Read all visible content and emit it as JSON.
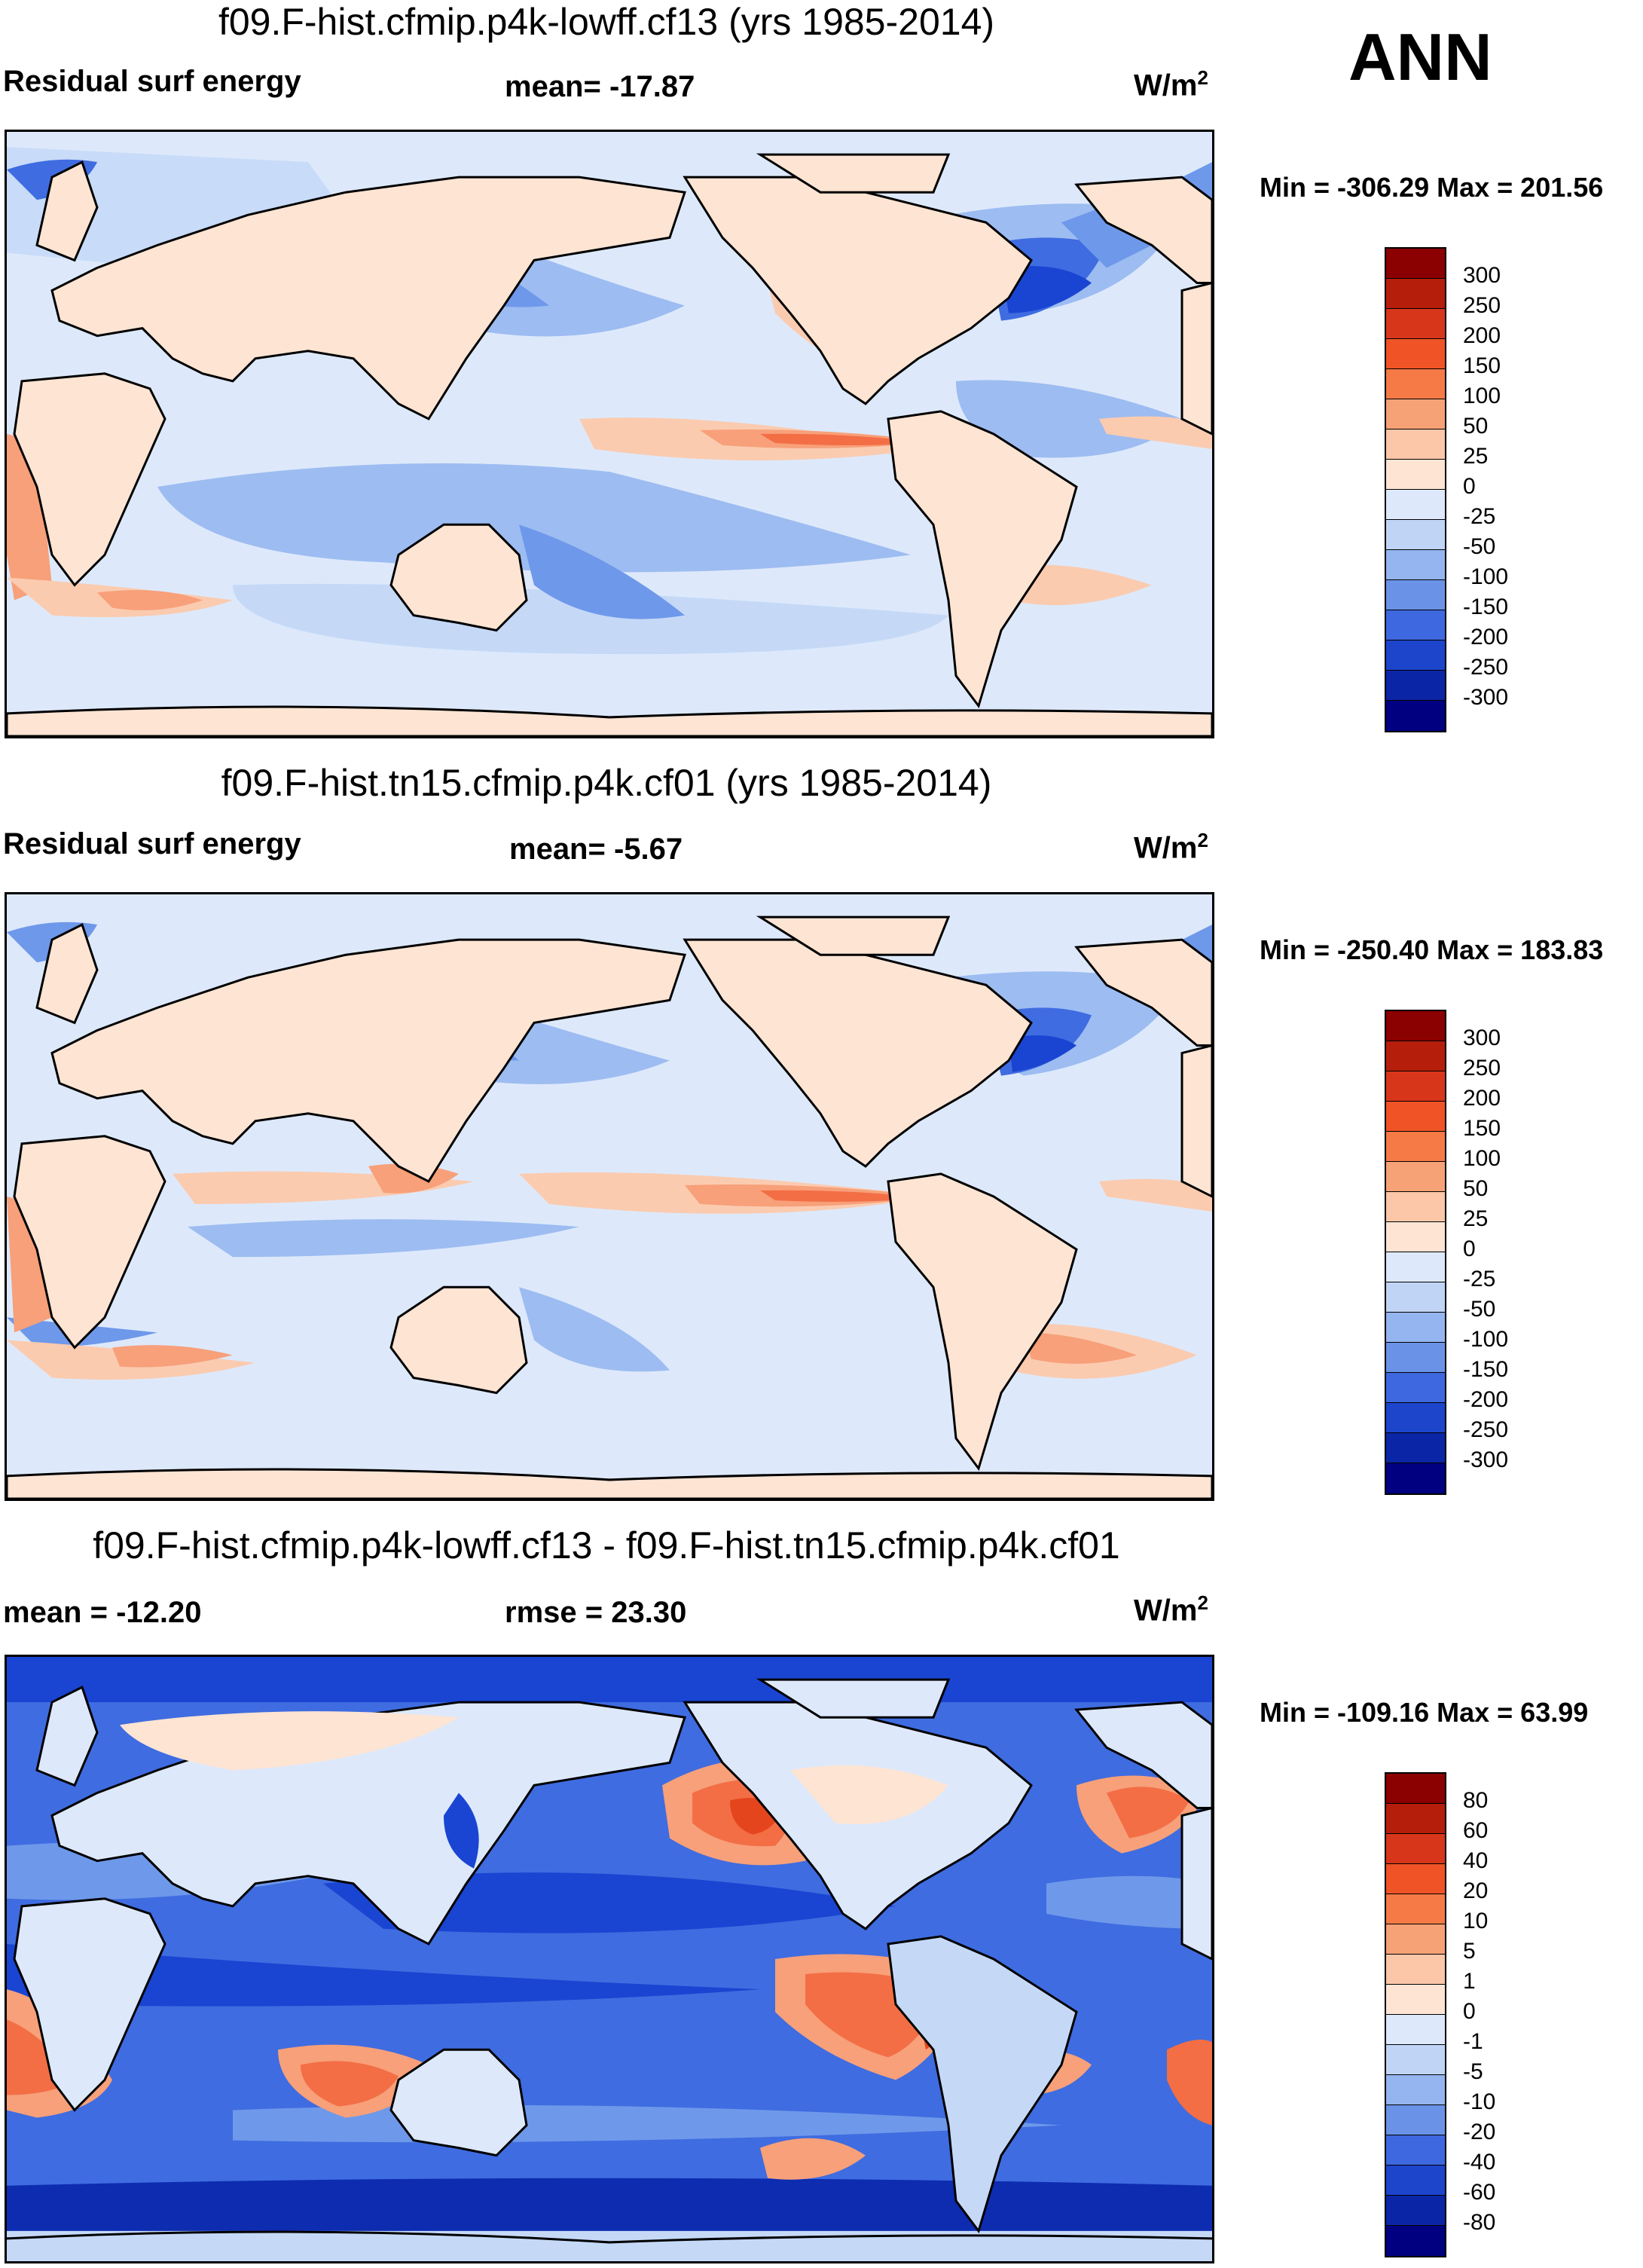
{
  "season": "ANN",
  "colors": {
    "ocean_light": "#dde9fb",
    "land": "#fde4d3",
    "warm1": "#fbcbb0",
    "warm2": "#f7a07a",
    "warm3": "#f36e45",
    "warm4": "#e4451c",
    "cool1": "#c5d9f7",
    "cool2": "#9dbcf1",
    "cool3": "#6e98ea",
    "cool4": "#3f6ce0",
    "cool5": "#1a45d2",
    "cool6": "#0d2cb0"
  },
  "chart_data": [
    {
      "type": "heatmap",
      "title": "f09.F-hist.cfmip.p4k-lowff.cf13 (yrs 1985-2014)",
      "left_label": "Residual surf energy",
      "center_label": "mean= -17.87",
      "units": "W/m",
      "units_sup": "2",
      "minmax": "Min = -306.29 Max = 201.56",
      "statistics": {
        "mean": -17.87,
        "min": -306.29,
        "max": 201.56
      },
      "colorbar": {
        "levels": [
          "300",
          "250",
          "200",
          "150",
          "100",
          "50",
          "25",
          "0",
          "-25",
          "-50",
          "-100",
          "-150",
          "-200",
          "-250",
          "-300"
        ],
        "colors": [
          "#8b0000",
          "#b51e0a",
          "#d8361a",
          "#f05325",
          "#f57a45",
          "#f7a177",
          "#fbc7a8",
          "#fde4d3",
          "#dde9fb",
          "#c0d5f6",
          "#94b5ef",
          "#6a93e8",
          "#3d68df",
          "#1c45cc",
          "#0a26a6",
          "#000080"
        ]
      },
      "xlabel": "",
      "ylabel": ""
    },
    {
      "type": "heatmap",
      "title": "f09.F-hist.tn15.cfmip.p4k.cf01 (yrs 1985-2014)",
      "left_label": "Residual surf energy",
      "center_label": "mean=  -5.67",
      "units": "W/m",
      "units_sup": "2",
      "minmax": "Min = -250.40 Max = 183.83",
      "statistics": {
        "mean": -5.67,
        "min": -250.4,
        "max": 183.83
      },
      "colorbar": {
        "levels": [
          "300",
          "250",
          "200",
          "150",
          "100",
          "50",
          "25",
          "0",
          "-25",
          "-50",
          "-100",
          "-150",
          "-200",
          "-250",
          "-300"
        ],
        "colors": [
          "#8b0000",
          "#b51e0a",
          "#d8361a",
          "#f05325",
          "#f57a45",
          "#f7a177",
          "#fbc7a8",
          "#fde4d3",
          "#dde9fb",
          "#c0d5f6",
          "#94b5ef",
          "#6a93e8",
          "#3d68df",
          "#1c45cc",
          "#0a26a6",
          "#000080"
        ]
      },
      "xlabel": "",
      "ylabel": ""
    },
    {
      "type": "heatmap",
      "title": "f09.F-hist.cfmip.p4k-lowff.cf13 - f09.F-hist.tn15.cfmip.p4k.cf01",
      "left_label": "mean = -12.20",
      "center_label": "rmse =  23.30",
      "units": "W/m",
      "units_sup": "2",
      "minmax": "Min = -109.16 Max =  63.99",
      "statistics": {
        "mean": -12.2,
        "rmse": 23.3,
        "min": -109.16,
        "max": 63.99
      },
      "colorbar": {
        "levels": [
          "80",
          "60",
          "40",
          "20",
          "10",
          "5",
          "1",
          "0",
          "-1",
          "-5",
          "-10",
          "-20",
          "-40",
          "-60",
          "-80"
        ],
        "colors": [
          "#8b0000",
          "#b51e0a",
          "#d8361a",
          "#f05325",
          "#f57a45",
          "#f7a177",
          "#fbc7a8",
          "#fde4d3",
          "#dde9fb",
          "#c0d5f6",
          "#94b5ef",
          "#6a93e8",
          "#3d68df",
          "#1c45cc",
          "#0a26a6",
          "#000080"
        ]
      },
      "xlabel": "",
      "ylabel": ""
    }
  ]
}
